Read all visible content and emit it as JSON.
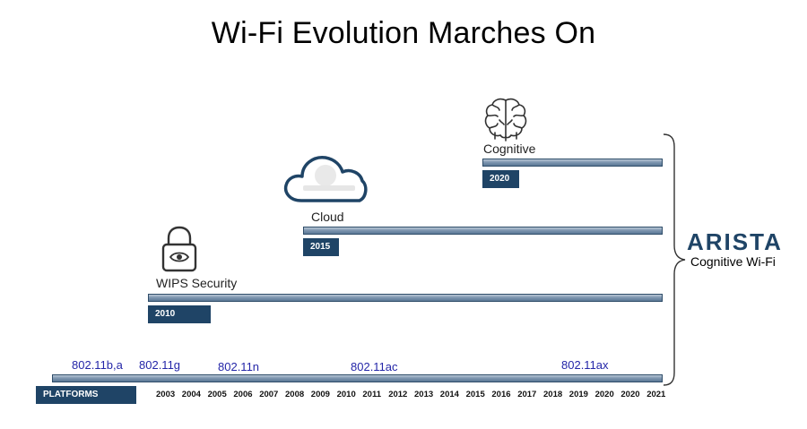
{
  "title": "Wi-Fi Evolution Marches On",
  "milestones": {
    "cognitive": {
      "label": "Cognitive",
      "year": "2020",
      "icon": "brain-icon"
    },
    "cloud": {
      "label": "Cloud",
      "year": "2015",
      "icon": "cloud-icon"
    },
    "wips": {
      "label": "WIPS Security",
      "year": "2010",
      "icon": "lock-eye-icon"
    },
    "platforms": {
      "label": "PLATFORMS"
    }
  },
  "standards": [
    "802.11b,a",
    "802.11g",
    "802.11n",
    "802.11ac",
    "802.11ax"
  ],
  "years": [
    "2003",
    "2004",
    "2005",
    "2006",
    "2007",
    "2008",
    "2009",
    "2010",
    "2011",
    "2012",
    "2013",
    "2014",
    "2015",
    "2016",
    "2017",
    "2018",
    "2019",
    "2020",
    "2020",
    "2021"
  ],
  "brand": {
    "name": "ARISTA",
    "tagline": "Cognitive Wi-Fi"
  },
  "colors": {
    "tag_bg": "#1f4466",
    "standard_text": "#2426a8",
    "bar": "#7f97b0"
  }
}
